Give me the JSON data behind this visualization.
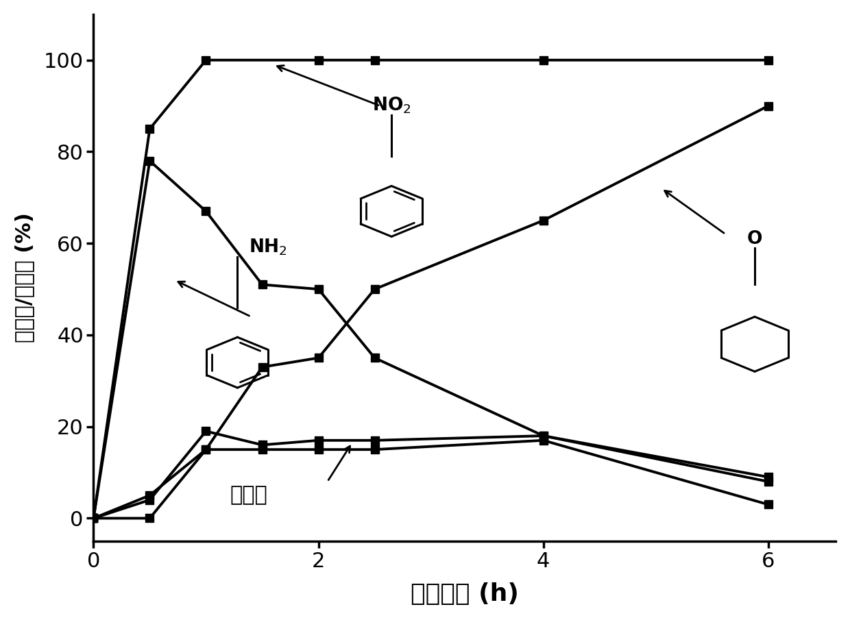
{
  "xlabel": "反应时间 (h)",
  "ylabel": "转化率/选择性 (%)",
  "xlim": [
    0,
    6.6
  ],
  "ylim": [
    -5,
    110
  ],
  "xticks": [
    0,
    2,
    4,
    6
  ],
  "yticks": [
    0,
    20,
    40,
    60,
    80,
    100
  ],
  "conversion_x": [
    0,
    0.5,
    1,
    2,
    2.5,
    4,
    6
  ],
  "conversion_y": [
    0,
    85,
    100,
    100,
    100,
    100,
    100
  ],
  "aniline_x": [
    0,
    0.5,
    1,
    1.5,
    2,
    2.5,
    4,
    6
  ],
  "aniline_y": [
    0,
    78,
    67,
    51,
    50,
    35,
    18,
    9
  ],
  "cyclohexanone_x": [
    0,
    0.5,
    1,
    1.5,
    2,
    2.5,
    4,
    6
  ],
  "cyclohexanone_y": [
    0,
    5,
    15,
    33,
    35,
    50,
    65,
    90
  ],
  "byproduct1_x": [
    0,
    0.5,
    1,
    1.5,
    2,
    2.5,
    4,
    6
  ],
  "byproduct1_y": [
    0,
    4,
    19,
    16,
    17,
    17,
    18,
    8
  ],
  "byproduct2_x": [
    0,
    0.5,
    1,
    1.5,
    2,
    2.5,
    4,
    6
  ],
  "byproduct2_y": [
    0,
    0,
    15,
    15,
    15,
    15,
    17,
    3
  ],
  "lw": 2.8,
  "ms": 9,
  "color": "#000000",
  "bg": "#ffffff"
}
